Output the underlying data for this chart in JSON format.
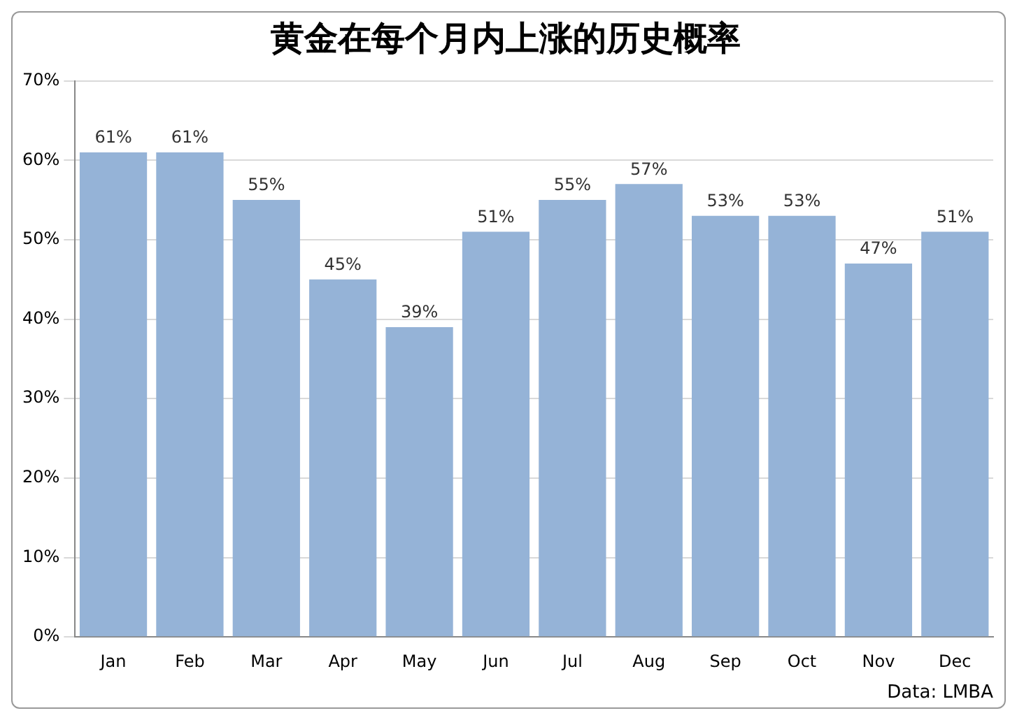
{
  "chart_data": {
    "type": "bar",
    "title": "黄金在每个月内上涨的历史概率",
    "categories": [
      "Jan",
      "Feb",
      "Mar",
      "Apr",
      "May",
      "Jun",
      "Jul",
      "Aug",
      "Sep",
      "Oct",
      "Nov",
      "Dec"
    ],
    "values": [
      61,
      61,
      55,
      45,
      39,
      51,
      55,
      57,
      53,
      53,
      47,
      51
    ],
    "value_labels": [
      "61%",
      "61%",
      "55%",
      "45%",
      "39%",
      "51%",
      "55%",
      "57%",
      "53%",
      "53%",
      "47%",
      "51%"
    ],
    "color": "#95b3d7",
    "ylim": [
      0,
      70
    ],
    "yticks": [
      {
        "value": 0,
        "label": "0%"
      },
      {
        "value": 10,
        "label": "10%"
      },
      {
        "value": 20,
        "label": "20%"
      },
      {
        "value": 30,
        "label": "30%"
      },
      {
        "value": 40,
        "label": "40%"
      },
      {
        "value": 50,
        "label": "50%"
      },
      {
        "value": 60,
        "label": "60%"
      },
      {
        "value": 70,
        "label": "70%"
      }
    ],
    "grid": "y",
    "legend": false,
    "annotations": [
      "Data: LMBA"
    ]
  }
}
